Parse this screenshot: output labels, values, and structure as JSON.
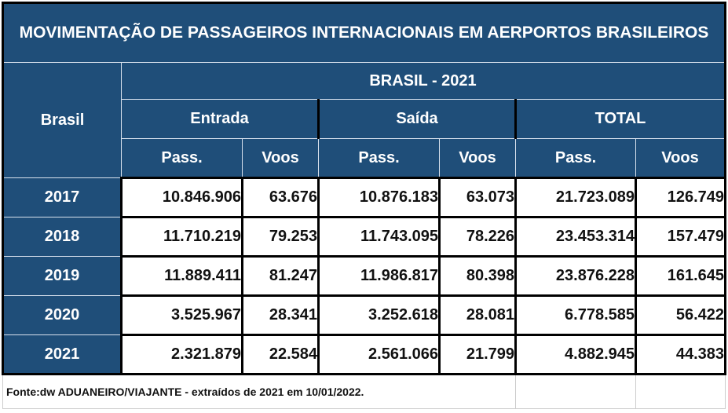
{
  "title": "MOVIMENTAÇÃO DE PASSAGEIROS INTERNACIONAIS EM AERPORTOS BRASILEIROS",
  "row_header": "Brasil",
  "period_header": "BRASIL - 2021",
  "groups": [
    "Entrada",
    "Saída",
    "TOTAL"
  ],
  "columns": [
    "Pass.",
    "Voos",
    "Pass.",
    "Voos",
    "Pass.",
    "Voos"
  ],
  "rows": [
    {
      "year": "2017",
      "values": [
        "10.846.906",
        "63.676",
        "10.876.183",
        "63.073",
        "21.723.089",
        "126.749"
      ]
    },
    {
      "year": "2018",
      "values": [
        "11.710.219",
        "79.253",
        "11.743.095",
        "78.226",
        "23.453.314",
        "157.479"
      ]
    },
    {
      "year": "2019",
      "values": [
        "11.889.411",
        "81.247",
        "11.986.817",
        "80.398",
        "23.876.228",
        "161.645"
      ]
    },
    {
      "year": "2020",
      "values": [
        "3.525.967",
        "28.341",
        "3.252.618",
        "28.081",
        "6.778.585",
        "56.422"
      ]
    },
    {
      "year": "2021",
      "values": [
        "2.321.879",
        "22.584",
        "2.561.066",
        "21.799",
        "4.882.945",
        "44.383"
      ]
    }
  ],
  "footer": "Fonte:dw ADUANEIRO/VIAJANTE - extraídos de 2021 em 10/01/2022.",
  "colors": {
    "header_bg": "#1f4e79",
    "header_text": "#ffffff"
  }
}
